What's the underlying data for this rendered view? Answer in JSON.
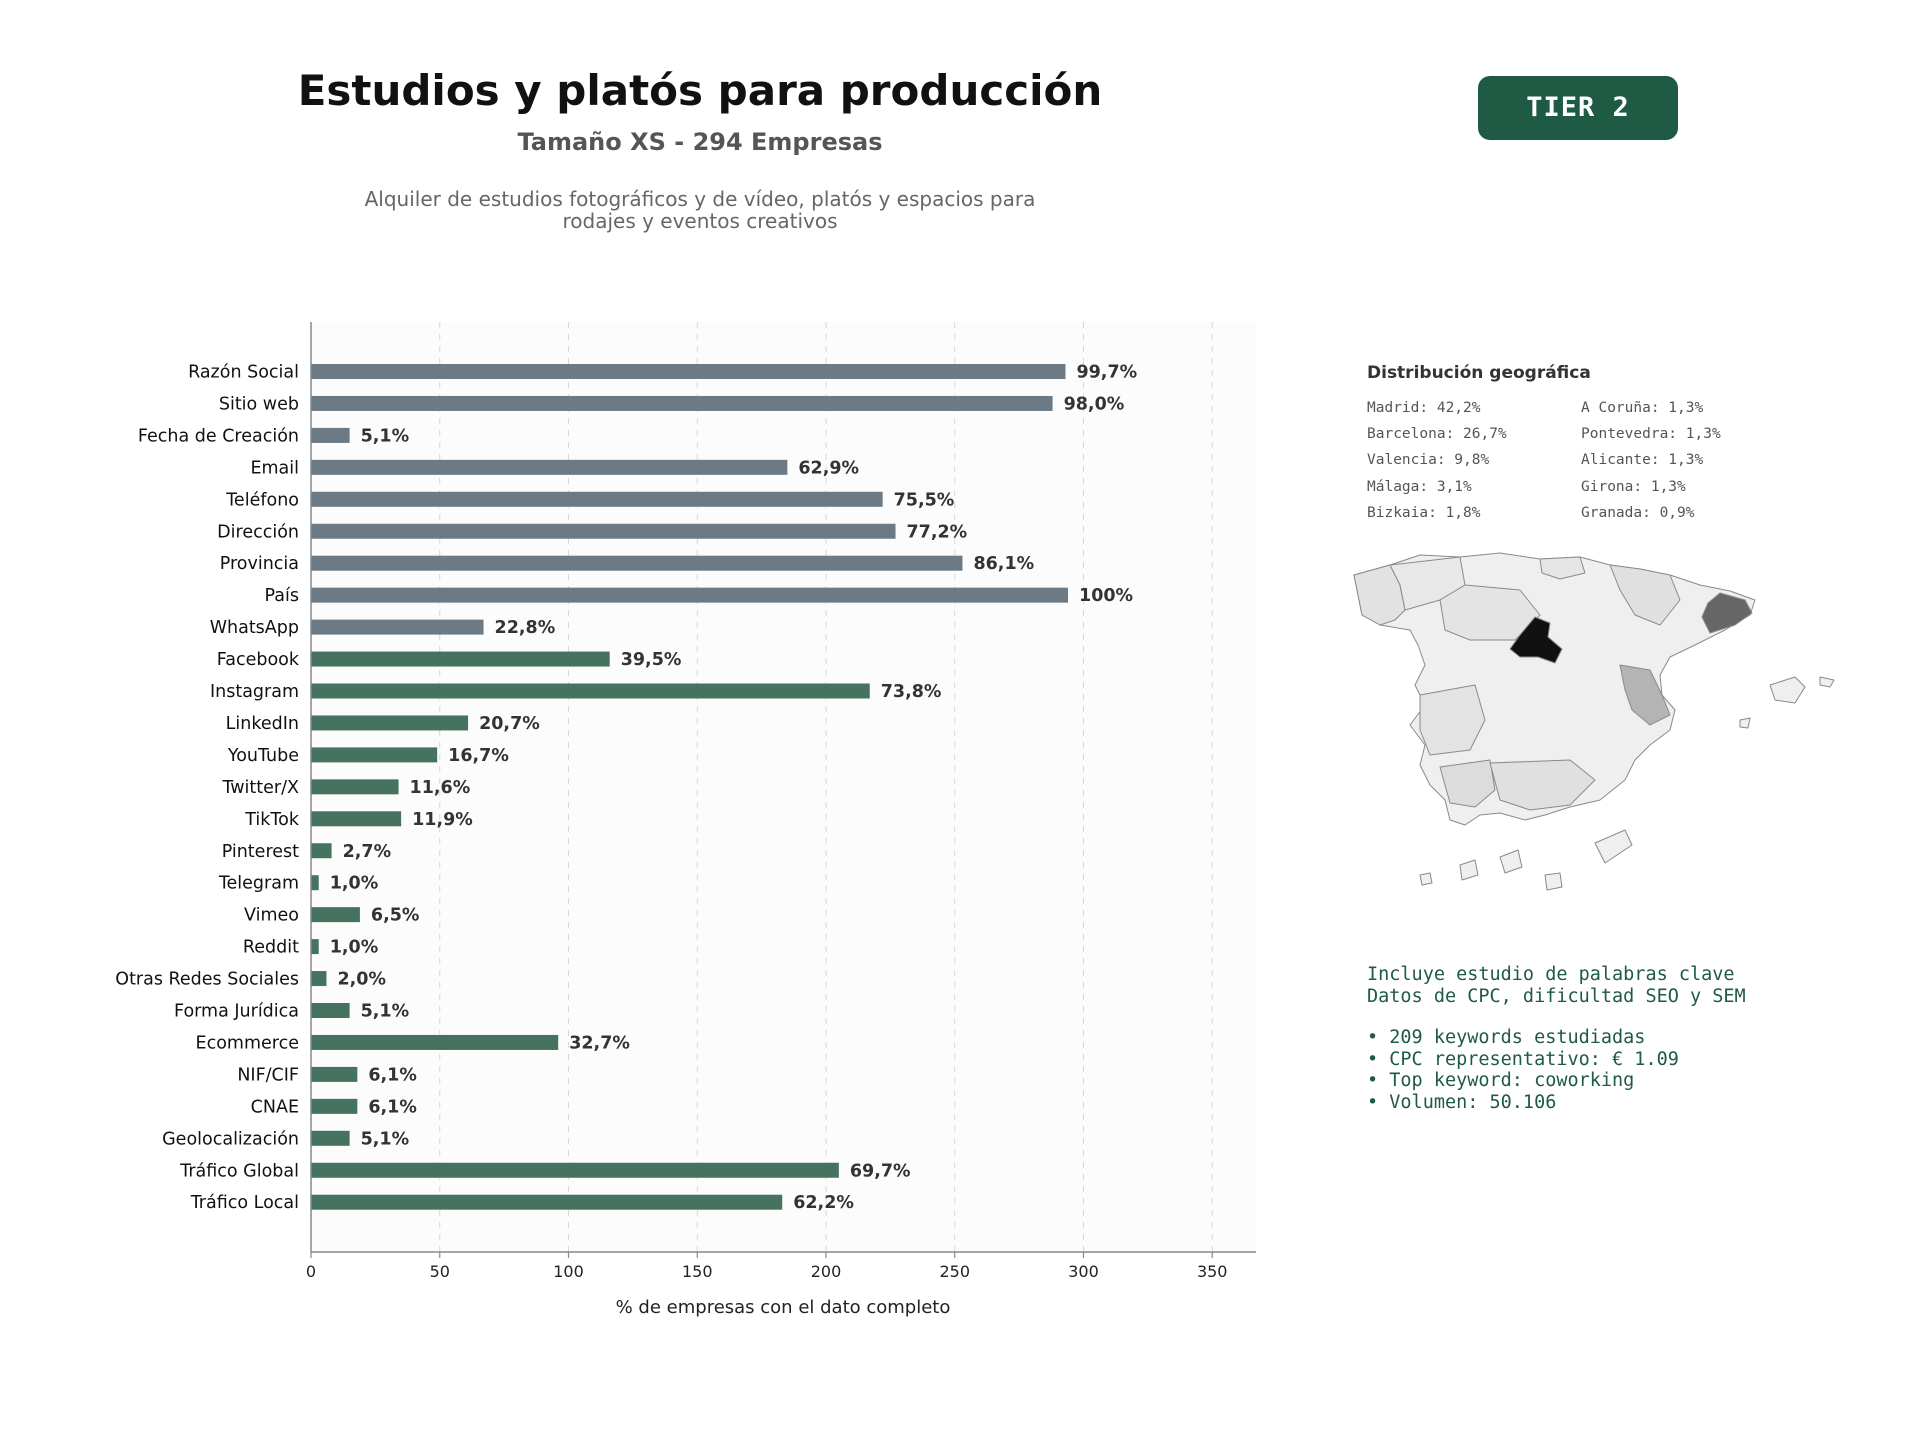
{
  "header": {
    "title": "Estudios y platós para producción",
    "subtitle": "Tamaño XS - 294 Empresas",
    "description_line1": "Alquiler de estudios fotográficos y de vídeo, platós y espacios para",
    "description_line2": "rodajes y eventos creativos"
  },
  "tier_badge": {
    "label": "TIER 2",
    "color": "#1f5a44"
  },
  "chart_data": {
    "type": "bar",
    "orientation": "horizontal",
    "categories": [
      "Razón Social",
      "Sitio web",
      "Fecha de Creación",
      "Email",
      "Teléfono",
      "Dirección",
      "Provincia",
      "País",
      "WhatsApp",
      "Facebook",
      "Instagram",
      "LinkedIn",
      "YouTube",
      "Twitter/X",
      "TikTok",
      "Pinterest",
      "Telegram",
      "Vimeo",
      "Reddit",
      "Otras Redes Sociales",
      "Forma Jurídica",
      "Ecommerce",
      "NIF/CIF",
      "CNAE",
      "Geolocalización",
      "Tráfico Global",
      "Tráfico Local"
    ],
    "values": [
      293,
      288,
      15,
      185,
      222,
      227,
      253,
      294,
      67,
      116,
      217,
      61,
      49,
      34,
      35,
      8,
      3,
      19,
      3,
      6,
      15,
      96,
      18,
      18,
      15,
      205,
      183
    ],
    "data_labels": [
      "99,7%",
      "98,0%",
      "5,1%",
      "62,9%",
      "75,5%",
      "77,2%",
      "86,1%",
      "100%",
      "22,8%",
      "39,5%",
      "73,8%",
      "20,7%",
      "16,7%",
      "11,6%",
      "11,9%",
      "2,7%",
      "1,0%",
      "6,5%",
      "1,0%",
      "2,0%",
      "5,1%",
      "32,7%",
      "6,1%",
      "6,1%",
      "5,1%",
      "69,7%",
      "62,2%"
    ],
    "bar_colors": [
      "#6c7a86",
      "#6c7a86",
      "#6c7a86",
      "#6c7a86",
      "#6c7a86",
      "#6c7a86",
      "#6c7a86",
      "#6c7a86",
      "#6c7a86",
      "#46735f",
      "#46735f",
      "#46735f",
      "#46735f",
      "#46735f",
      "#46735f",
      "#46735f",
      "#46735f",
      "#46735f",
      "#46735f",
      "#46735f",
      "#46735f",
      "#46735f",
      "#46735f",
      "#46735f",
      "#46735f",
      "#46735f",
      "#46735f"
    ],
    "xlabel": "% de empresas con el dato completo",
    "xlim": [
      0,
      367
    ],
    "xticks": [
      0,
      50,
      100,
      150,
      200,
      250,
      300,
      350
    ],
    "grid": true
  },
  "geo": {
    "title": "Distribución geográfica",
    "items": [
      "Madrid: 42,2%",
      "Barcelona: 26,7%",
      "Valencia: 9,8%",
      "Málaga: 3,1%",
      "Bizkaia: 1,8%",
      "A Coruña: 1,3%",
      "Pontevedra: 1,3%",
      "Alicante: 1,3%",
      "Girona: 1,3%",
      "Granada: 0,9%"
    ]
  },
  "seo": {
    "line1": "Incluye estudio de palabras clave",
    "line2": "Datos de CPC, dificultad SEO y SEM",
    "bullet1": "• 209 keywords estudiadas",
    "bullet2": "• CPC representativo: € 1.09",
    "bullet3": "• Top keyword: coworking",
    "bullet4": "• Volumen: 50.106"
  }
}
